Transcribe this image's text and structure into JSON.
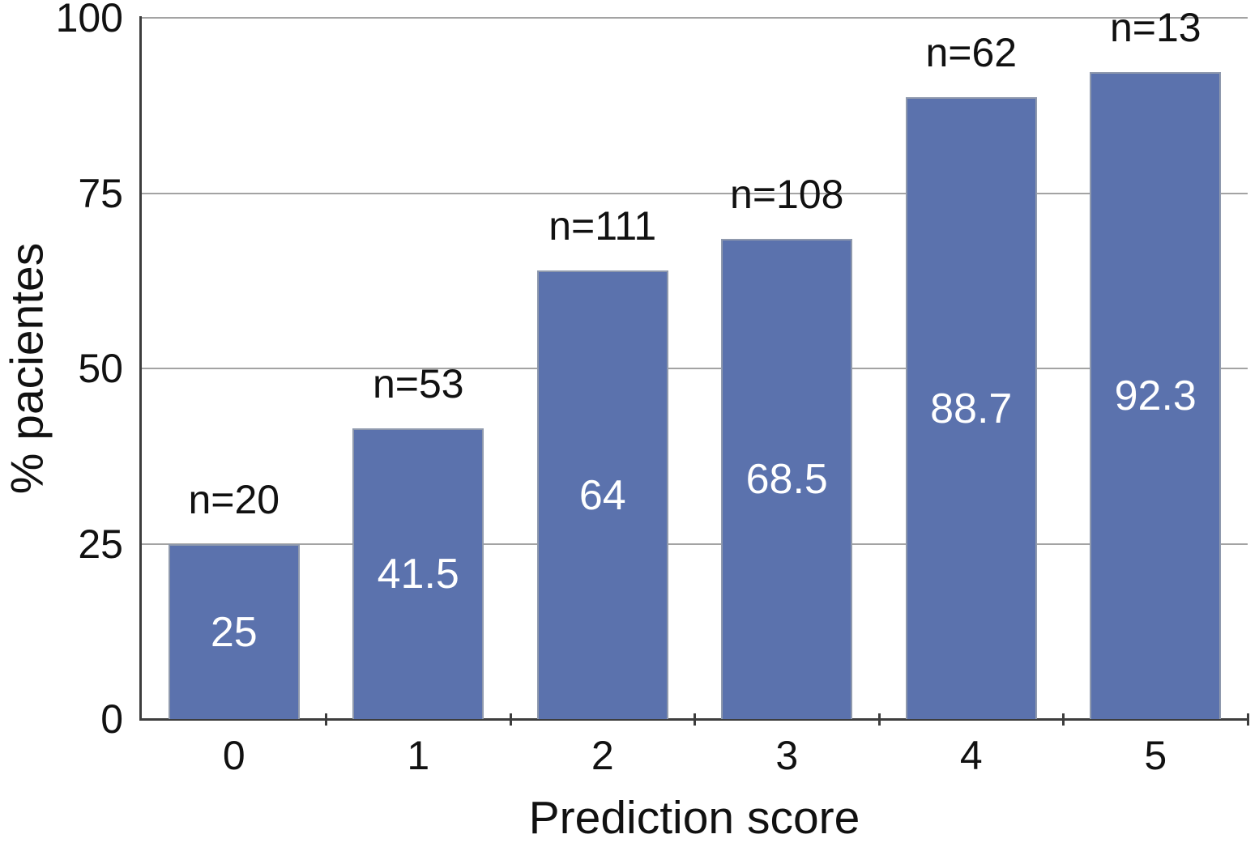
{
  "chart_data": {
    "type": "bar",
    "title": "",
    "xlabel": "Prediction score",
    "ylabel": "% pacientes",
    "categories": [
      "0",
      "1",
      "2",
      "3",
      "4",
      "5"
    ],
    "values": [
      25,
      41.5,
      64,
      68.5,
      88.7,
      92.3
    ],
    "bar_value_labels": [
      "25",
      "41.5",
      "64",
      "68.5",
      "88.7",
      "92.3"
    ],
    "n_labels": [
      "n=20",
      "n=53",
      "n=111",
      "n=108",
      "n=62",
      "n=13"
    ],
    "ylim": [
      0,
      100
    ],
    "yticks": [
      0,
      25,
      50,
      75,
      100
    ],
    "ytick_labels": [
      "0",
      "25",
      "50",
      "75",
      "100"
    ],
    "grid": true,
    "legend": false,
    "legend_position": "none",
    "colors": {
      "bar_fill": "#5B72AD",
      "bar_border": "#8F99AD",
      "gridline": "#A3A3A3",
      "axis": "#3D3D3D",
      "text": "#111111",
      "bar_value_text": "#FFFFFF",
      "background": "#FFFFFF"
    }
  }
}
